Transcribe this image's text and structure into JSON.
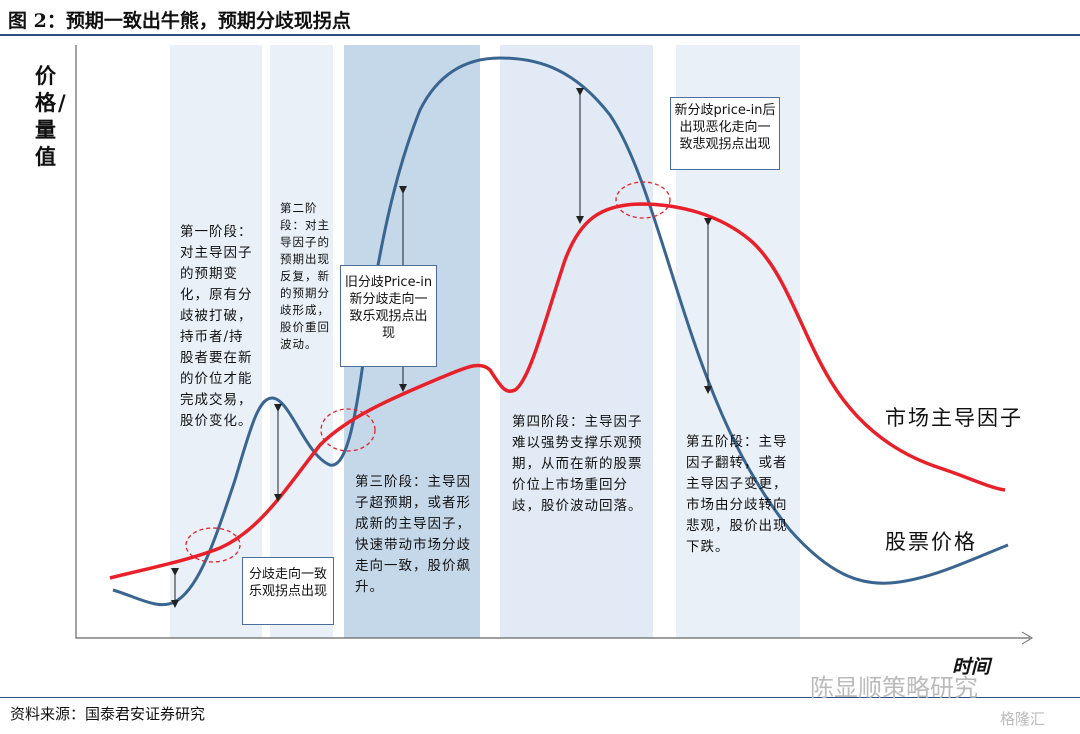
{
  "title": "图 2：预期一致出牛熊，预期分歧现拐点",
  "y_axis_label": "价格/量值",
  "x_axis_label": "时间",
  "stages": [
    "第一阶段：对主导因子的预期变化，原有分歧被打破，持币者/持股者要在新的价位才能完成交易，股价变化。",
    "第二阶段：对主导因子的预期出现反复，新的预期分歧形成，股价重回波动。",
    "第三阶段：主导因子超预期，或者形成新的主导因子，快速带动市场分歧走向一致，股价飙升。",
    "第四阶段：主导因子难以强势支撑乐观预期，从而在新的股票价位上市场重回分歧，股价波动回落。",
    "第五阶段：主导因子翻转，或者主导因子变更，市场由分歧转向悲观，股价出现下跌。"
  ],
  "callouts": [
    "分歧走向一致乐观拐点出现",
    "旧分歧Price-in新分歧走向一致乐观拐点出现",
    "新分歧price-in后出现恶化走向一致悲观拐点出现"
  ],
  "series": [
    {
      "name": "市场主导因子",
      "color": "#e8202a"
    },
    {
      "name": "股票价格",
      "color": "#3a6590"
    }
  ],
  "source": "资料来源：国泰君安证券研究",
  "watermark": "陈显顺策略研究",
  "watermark2": "格隆汇"
}
